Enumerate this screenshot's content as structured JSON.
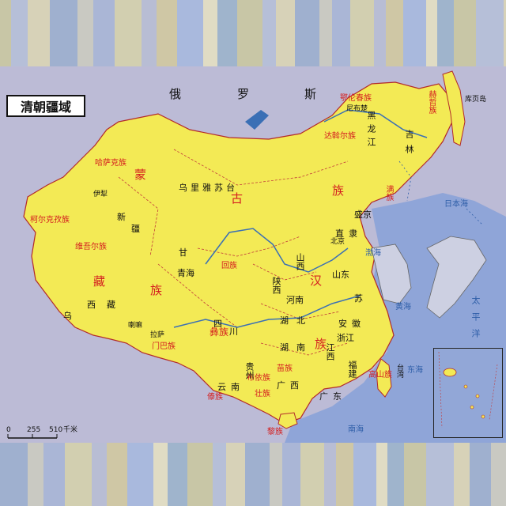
{
  "title": "清朝疆域",
  "scale": {
    "zero": "0",
    "mid": "255",
    "end": "510",
    "unit": "千米"
  },
  "colors": {
    "land": "#f3ea55",
    "sea": "#8fa5d8",
    "foreign": "#bcbbd6",
    "border": "#c23a3a",
    "river": "#3a6fb5",
    "ethnic_text": "#d42020"
  },
  "country_labels": [
    {
      "id": "russia-1",
      "text": "俄"
    },
    {
      "id": "russia-2",
      "text": "罗"
    },
    {
      "id": "russia-3",
      "text": "斯"
    }
  ],
  "ethnic_labels": [
    {
      "id": "mongol-1",
      "text": "蒙"
    },
    {
      "id": "mongol-2",
      "text": "古"
    },
    {
      "id": "mongol-3",
      "text": "族"
    },
    {
      "id": "tibetan-1",
      "text": "藏"
    },
    {
      "id": "tibetan-2",
      "text": "族"
    },
    {
      "id": "han-1",
      "text": "汉"
    },
    {
      "id": "han-2",
      "text": "族"
    },
    {
      "id": "hui",
      "text": "回族"
    },
    {
      "id": "uyghur",
      "text": "维吾尔族"
    },
    {
      "id": "kazakh",
      "text": "哈萨克族"
    },
    {
      "id": "kyrgyz",
      "text": "柯尔克孜族"
    },
    {
      "id": "menba",
      "text": "门巴族"
    },
    {
      "id": "yi",
      "text": "彝族"
    },
    {
      "id": "miao",
      "text": "苗族"
    },
    {
      "id": "zhuang",
      "text": "壮族"
    },
    {
      "id": "buyi",
      "text": "布依族"
    },
    {
      "id": "dai",
      "text": "傣族"
    },
    {
      "id": "li",
      "text": "黎族"
    },
    {
      "id": "gaoshan",
      "text": "高山族"
    },
    {
      "id": "oroqen",
      "text": "鄂伦春族"
    },
    {
      "id": "daur",
      "text": "达斡尔族"
    },
    {
      "id": "hezhe",
      "text": "赫哲族"
    },
    {
      "id": "manchu",
      "text": "满族"
    }
  ],
  "region_labels": [
    {
      "id": "wulisutai",
      "text": "乌里雅苏台"
    },
    {
      "id": "xinjiang-1",
      "text": "新"
    },
    {
      "id": "xinjiang-2",
      "text": "疆"
    },
    {
      "id": "gansu",
      "text": "甘"
    },
    {
      "id": "qinghai",
      "text": "青海"
    },
    {
      "id": "xizang",
      "text": "西藏"
    },
    {
      "id": "sichuan-1",
      "text": "四"
    },
    {
      "id": "sichuan-2",
      "text": "川"
    },
    {
      "id": "yunnan",
      "text": "云南"
    },
    {
      "id": "shanxi",
      "text": "山西"
    },
    {
      "id": "shaanxi",
      "text": "陕西"
    },
    {
      "id": "henan",
      "text": "河南"
    },
    {
      "id": "hubei",
      "text": "湖北"
    },
    {
      "id": "hunan",
      "text": "湖南"
    },
    {
      "id": "guizhou",
      "text": "贵州"
    },
    {
      "id": "guangxi",
      "text": "广西"
    },
    {
      "id": "guangdong",
      "text": "广东"
    },
    {
      "id": "jiangxi",
      "text": "江西"
    },
    {
      "id": "anhui",
      "text": "安徽"
    },
    {
      "id": "zhejiang",
      "text": "浙江"
    },
    {
      "id": "fujian",
      "text": "福建"
    },
    {
      "id": "jiangsu",
      "text": "苏"
    },
    {
      "id": "shandong",
      "text": "山东"
    },
    {
      "id": "zhili",
      "text": "直隶"
    },
    {
      "id": "shengjing",
      "text": "盛京"
    },
    {
      "id": "jilin",
      "text": "吉林"
    },
    {
      "id": "heilongjiang",
      "text": "黑龙江"
    },
    {
      "id": "taiwan",
      "text": "台湾"
    },
    {
      "id": "kuye",
      "text": "库页岛"
    },
    {
      "id": "wu",
      "text": "乌"
    }
  ],
  "city_labels": [
    {
      "id": "beijing",
      "text": "北京"
    },
    {
      "id": "lhasa",
      "text": "拉萨"
    },
    {
      "id": "yili",
      "text": "伊犁"
    },
    {
      "id": "nerchinsk",
      "text": "尼布楚"
    },
    {
      "id": "xigaze",
      "text": "喇嘛"
    }
  ],
  "water_labels": [
    {
      "id": "bohai",
      "text": "渤海"
    },
    {
      "id": "huanghai",
      "text": "黄海"
    },
    {
      "id": "donghai",
      "text": "东海"
    },
    {
      "id": "nanhai",
      "text": "南海"
    },
    {
      "id": "riben-hai",
      "text": "日本海"
    },
    {
      "id": "taipingyang",
      "text": "太平洋"
    }
  ]
}
